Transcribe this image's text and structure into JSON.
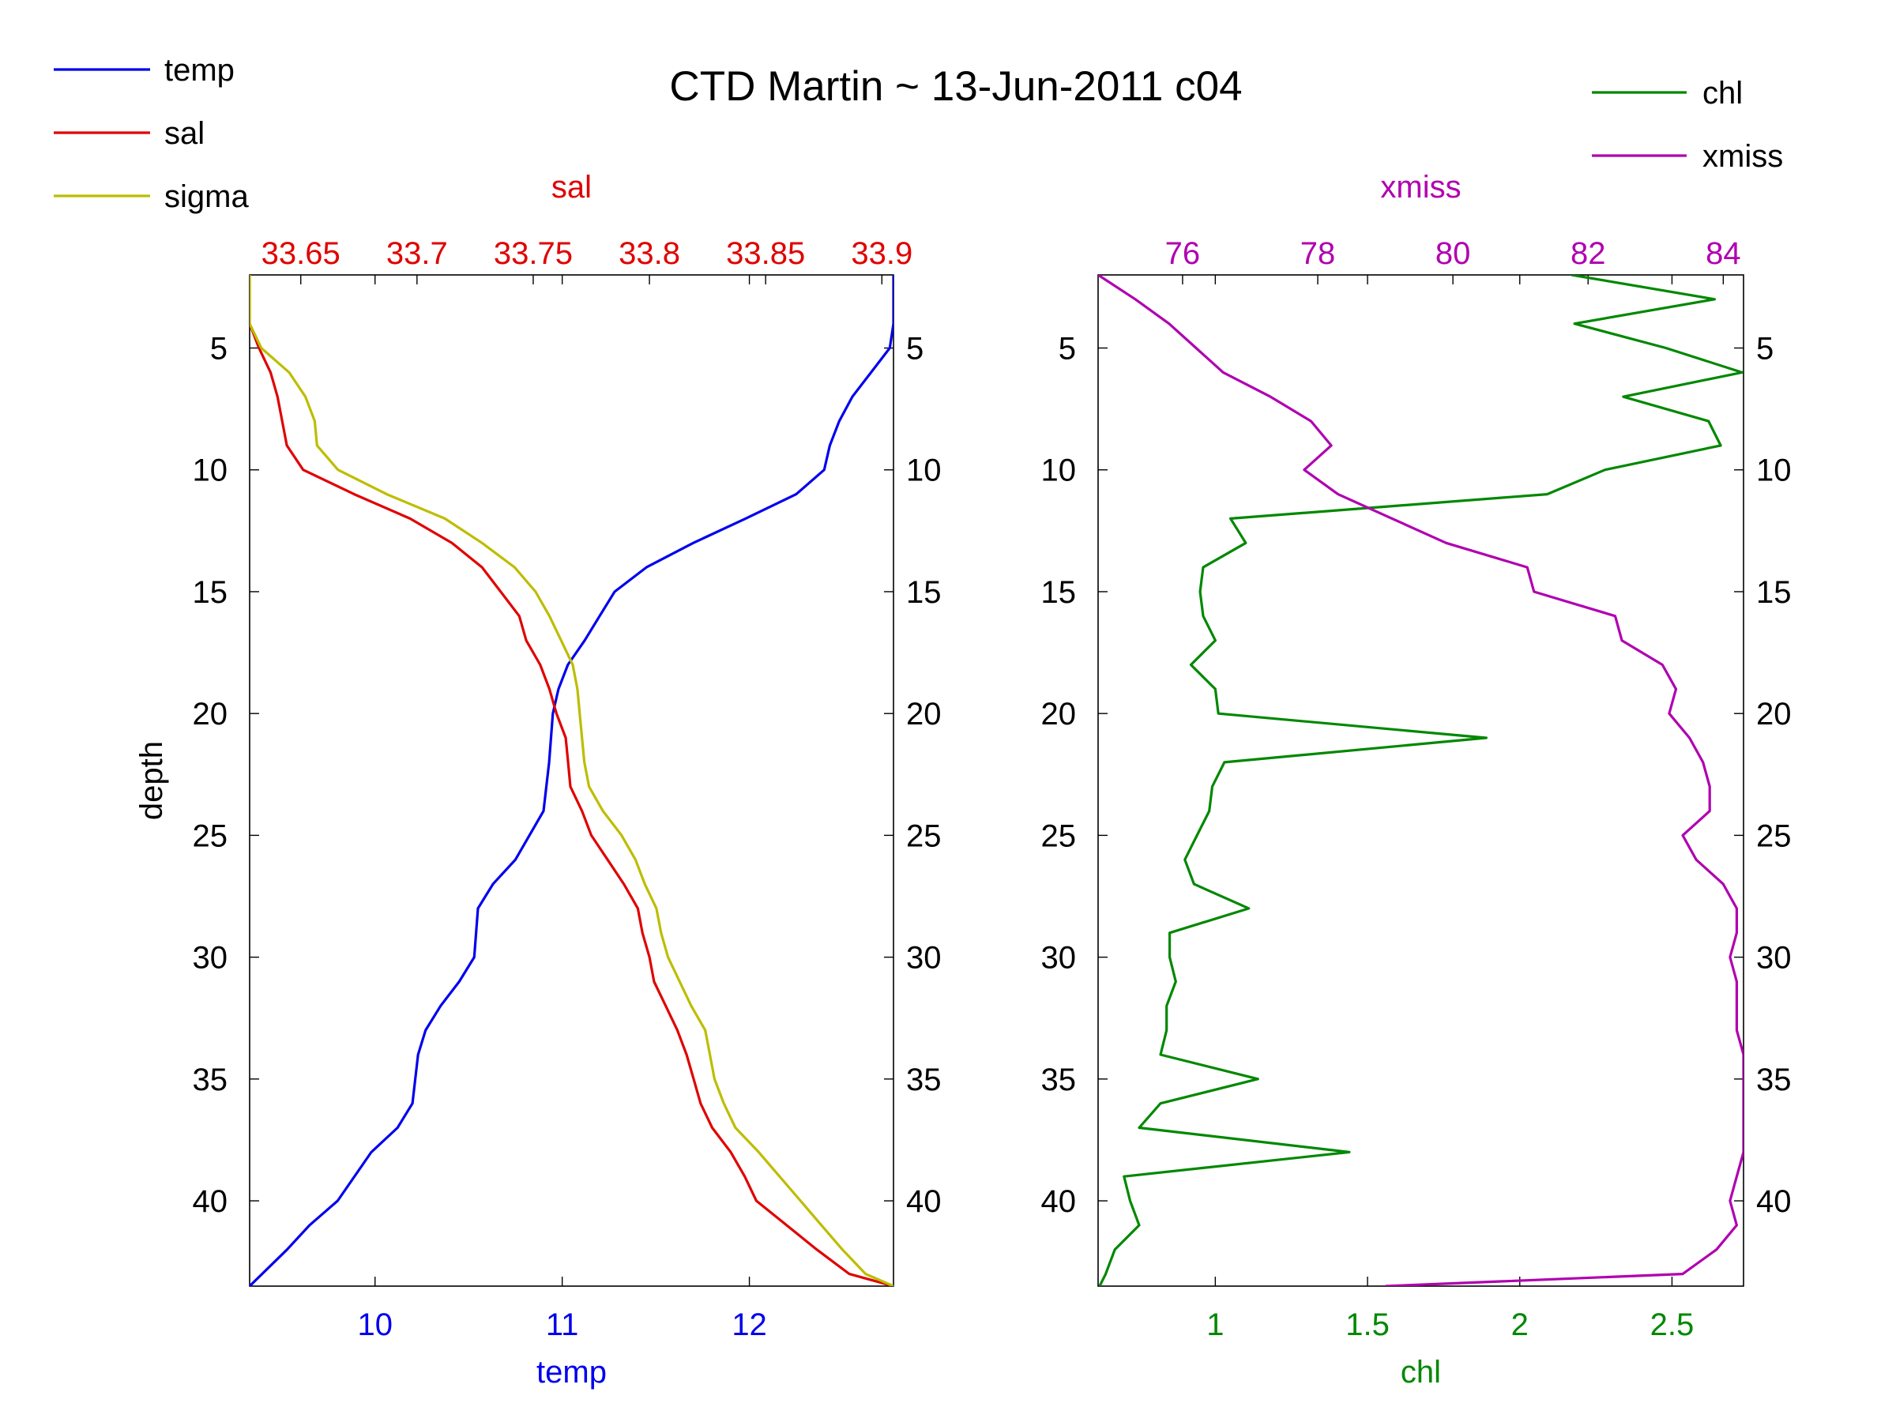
{
  "title": "CTD Martin ~ 13-Jun-2011 c04",
  "colors": {
    "temp": "#0000ee",
    "sal": "#e00000",
    "sigma": "#bdbd00",
    "chl": "#008800",
    "xmiss": "#b000b0",
    "axis": "#000000"
  },
  "legend_left": [
    {
      "label": "temp",
      "color": "#0000ee"
    },
    {
      "label": "sal",
      "color": "#e00000"
    },
    {
      "label": "sigma",
      "color": "#bdbd00"
    }
  ],
  "legend_right": [
    {
      "label": "chl",
      "color": "#008800"
    },
    {
      "label": "xmiss",
      "color": "#b000b0"
    }
  ],
  "chart_data": [
    {
      "type": "line",
      "title": "",
      "ylabel": "depth",
      "yaxis": {
        "range": [
          2,
          43.5
        ],
        "reversed": true,
        "ticks": [
          5,
          10,
          15,
          20,
          25,
          30,
          35,
          40
        ],
        "both_sides": true
      },
      "bottom_axis": {
        "label": "temp",
        "range": [
          9.33,
          12.77
        ],
        "ticks": [
          10,
          11,
          12
        ],
        "tick_labels": [
          "10",
          "11",
          "12"
        ]
      },
      "top_axis": {
        "label": "sal",
        "range": [
          33.628,
          33.905
        ],
        "ticks": [
          33.65,
          33.7,
          33.75,
          33.8,
          33.85,
          33.9
        ],
        "tick_labels": [
          "33.65",
          "33.7",
          "33.75",
          "33.8",
          "33.85",
          "33.9"
        ]
      },
      "series": [
        {
          "name": "temp",
          "axis": "bottom",
          "x": [
            12.77,
            12.77,
            12.75,
            12.65,
            12.55,
            12.48,
            12.43,
            12.4,
            12.25,
            11.98,
            11.7,
            11.45,
            11.28,
            11.2,
            11.12,
            11.03,
            10.98,
            10.95,
            10.93,
            10.9,
            10.75,
            10.63,
            10.55,
            10.53,
            10.45,
            10.35,
            10.27,
            10.23,
            10.2,
            10.12,
            9.98,
            9.8,
            9.65,
            9.53,
            9.33
          ],
          "y": [
            2,
            4,
            5,
            6,
            7,
            8,
            9,
            10,
            11,
            12,
            13,
            14,
            15,
            16,
            17,
            18,
            19,
            20,
            22,
            24,
            26,
            27,
            28,
            30,
            31,
            32,
            33,
            34,
            36,
            37,
            38,
            40,
            41,
            42,
            43.5
          ]
        },
        {
          "name": "sal",
          "axis": "top",
          "y": [
            2,
            4,
            5,
            6,
            7,
            8,
            9,
            10,
            11,
            12,
            13,
            14,
            15,
            16,
            17,
            18,
            19,
            20,
            21,
            22,
            23,
            24,
            25,
            26,
            27,
            28,
            29,
            30,
            31,
            32,
            33,
            34,
            35,
            36,
            37,
            38,
            39,
            40,
            41,
            42,
            43,
            43.5
          ],
          "x": [
            33.628,
            33.628,
            33.632,
            33.637,
            33.64,
            33.642,
            33.644,
            33.651,
            33.673,
            33.697,
            33.715,
            33.728,
            33.736,
            33.744,
            33.747,
            33.753,
            33.757,
            33.76,
            33.764,
            33.765,
            33.766,
            33.771,
            33.775,
            33.782,
            33.789,
            33.795,
            33.797,
            33.8,
            33.802,
            33.807,
            33.812,
            33.816,
            33.819,
            33.822,
            33.827,
            33.835,
            33.841,
            33.846,
            33.859,
            33.872,
            33.886,
            33.905
          ]
        },
        {
          "name": "sigma",
          "axis": "top",
          "y": [
            2,
            4,
            5,
            6,
            7,
            8,
            9,
            10,
            11,
            12,
            13,
            14,
            15,
            16,
            17,
            18,
            19,
            20,
            21,
            22,
            23,
            24,
            25,
            26,
            27,
            28,
            29,
            30,
            31,
            32,
            33,
            34,
            35,
            36,
            37,
            38,
            39,
            40,
            41,
            42,
            43,
            43.5
          ],
          "x": [
            33.628,
            33.628,
            33.633,
            33.645,
            33.652,
            33.656,
            33.657,
            33.666,
            33.687,
            33.712,
            33.728,
            33.742,
            33.751,
            33.757,
            33.762,
            33.767,
            33.769,
            33.77,
            33.771,
            33.772,
            33.774,
            33.78,
            33.788,
            33.794,
            33.798,
            33.803,
            33.805,
            33.808,
            33.813,
            33.818,
            33.824,
            33.826,
            33.828,
            33.832,
            33.837,
            33.847,
            33.856,
            33.865,
            33.874,
            33.883,
            33.893,
            33.905
          ]
        }
      ]
    },
    {
      "type": "line",
      "title": "",
      "yaxis": {
        "range": [
          2,
          43.5
        ],
        "reversed": true,
        "ticks": [
          5,
          10,
          15,
          20,
          25,
          30,
          35,
          40
        ],
        "both_sides": true
      },
      "bottom_axis": {
        "label": "chl",
        "range": [
          0.615,
          2.735
        ],
        "ticks": [
          1,
          1.5,
          2,
          2.5
        ],
        "tick_labels": [
          "1",
          "1.5",
          "2",
          "2.5"
        ]
      },
      "top_axis": {
        "label": "xmiss",
        "range": [
          74.75,
          84.3
        ],
        "ticks": [
          76,
          78,
          80,
          82,
          84
        ],
        "tick_labels": [
          "76",
          "78",
          "80",
          "82",
          "84"
        ]
      },
      "series": [
        {
          "name": "chl",
          "axis": "bottom",
          "y": [
            2,
            3,
            4,
            5,
            6,
            7,
            8,
            9,
            10,
            11,
            12,
            13,
            14,
            15,
            16,
            17,
            18,
            19,
            20,
            21,
            22,
            23,
            24,
            25,
            26,
            27,
            28,
            29,
            30,
            31,
            32,
            33,
            34,
            35,
            36,
            37,
            38,
            39,
            40,
            41,
            42,
            43,
            43.5
          ],
          "x": [
            2.17,
            2.64,
            2.18,
            2.48,
            2.73,
            2.34,
            2.62,
            2.66,
            2.28,
            2.09,
            1.05,
            1.1,
            0.96,
            0.95,
            0.96,
            1.0,
            0.92,
            1.0,
            1.01,
            1.89,
            1.03,
            0.99,
            0.98,
            0.94,
            0.9,
            0.93,
            1.11,
            0.85,
            0.85,
            0.87,
            0.84,
            0.84,
            0.82,
            1.14,
            0.82,
            0.75,
            1.44,
            0.7,
            0.72,
            0.75,
            0.67,
            0.64,
            0.62
          ]
        },
        {
          "name": "xmiss",
          "axis": "top",
          "y": [
            2,
            3,
            4,
            5,
            6,
            7,
            8,
            9,
            10,
            11,
            12,
            13,
            14,
            15,
            16,
            17,
            18,
            19,
            20,
            21,
            22,
            23,
            24,
            25,
            26,
            27,
            28,
            29,
            30,
            31,
            32,
            33,
            34,
            35,
            36,
            37,
            38,
            39,
            40,
            41,
            42,
            43,
            43.5
          ],
          "x": [
            74.75,
            75.3,
            75.8,
            76.2,
            76.6,
            77.3,
            77.9,
            78.2,
            77.8,
            78.3,
            79.1,
            79.9,
            81.1,
            81.2,
            82.4,
            82.5,
            83.1,
            83.3,
            83.2,
            83.5,
            83.7,
            83.8,
            83.8,
            83.4,
            83.6,
            84.0,
            84.2,
            84.2,
            84.1,
            84.2,
            84.2,
            84.2,
            84.3,
            84.3,
            84.3,
            84.3,
            84.3,
            84.2,
            84.1,
            84.2,
            83.9,
            83.4,
            79.0
          ]
        }
      ]
    }
  ]
}
